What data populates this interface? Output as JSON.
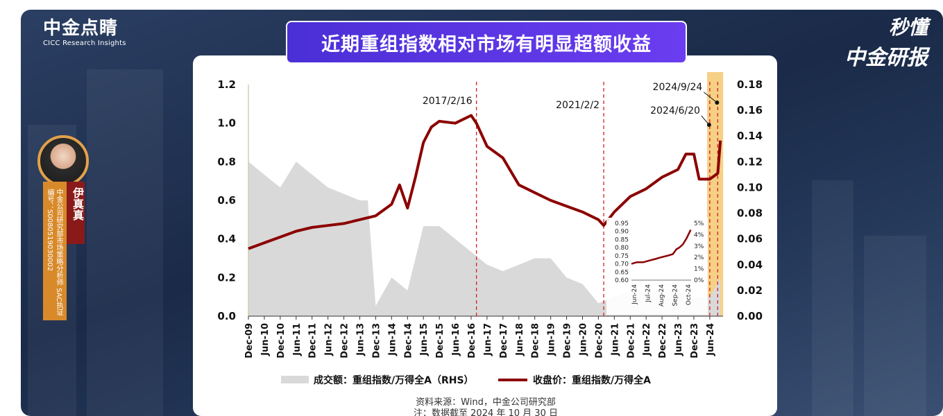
{
  "brand": {
    "logo_name": "中金点睛",
    "logo_sub": "CICC Research Insights",
    "right_line1": "秒懂",
    "right_line2": "中金研报"
  },
  "analyst": {
    "name": "伊真真",
    "title": "中金公司研究部市场策略分析师",
    "license": "SAC执证编号：S0080519030002"
  },
  "colors": {
    "line": "#8B0000",
    "volume": "#d9d9d9",
    "highlight": "#f5c870",
    "event": "#d42020",
    "title_bg": "#5a35e6"
  },
  "chart_data": {
    "type": "line",
    "title": "近期重组指数相对市场有明显超额收益",
    "x_ticks": [
      "Dec-09",
      "Jun-10",
      "Dec-10",
      "Jun-11",
      "Dec-11",
      "Jun-12",
      "Dec-12",
      "Jun-13",
      "Dec-13",
      "Jun-14",
      "Dec-14",
      "Jun-15",
      "Dec-15",
      "Jun-16",
      "Dec-16",
      "Jun-17",
      "Dec-17",
      "Jun-18",
      "Dec-18",
      "Jun-19",
      "Dec-19",
      "Jun-20",
      "Dec-20",
      "Jun-21",
      "Dec-21",
      "Jun-22",
      "Dec-22",
      "Jun-23",
      "Dec-23",
      "Jun-24"
    ],
    "y_left": {
      "range": [
        0,
        1.2
      ],
      "ticks": [
        "0.0",
        "0.2",
        "0.4",
        "0.6",
        "0.8",
        "1.0",
        "1.2"
      ]
    },
    "y_right": {
      "range": [
        0,
        0.18
      ],
      "ticks": [
        "0.00",
        "0.02",
        "0.04",
        "0.06",
        "0.08",
        "0.10",
        "0.12",
        "0.14",
        "0.16",
        "0.18"
      ]
    },
    "series": [
      {
        "name": "收盘价：重组指数/万得全A",
        "axis": "left",
        "x": [
          "2009-12",
          "2010-06",
          "2010-12",
          "2011-06",
          "2011-12",
          "2012-06",
          "2012-12",
          "2013-06",
          "2013-12",
          "2014-06",
          "2014-09",
          "2014-12",
          "2015-03",
          "2015-06",
          "2015-09",
          "2015-12",
          "2016-06",
          "2016-12",
          "2017-02",
          "2017-06",
          "2017-12",
          "2018-06",
          "2018-12",
          "2019-06",
          "2019-12",
          "2020-06",
          "2020-12",
          "2021-02",
          "2021-06",
          "2021-12",
          "2022-06",
          "2022-12",
          "2023-06",
          "2023-09",
          "2023-12",
          "2024-02",
          "2024-06",
          "2024-09",
          "2024-10"
        ],
        "values": [
          0.35,
          0.38,
          0.41,
          0.44,
          0.46,
          0.47,
          0.48,
          0.5,
          0.52,
          0.58,
          0.68,
          0.56,
          0.72,
          0.9,
          0.98,
          1.01,
          1.0,
          1.04,
          1.0,
          0.88,
          0.82,
          0.68,
          0.64,
          0.6,
          0.57,
          0.54,
          0.5,
          0.47,
          0.54,
          0.62,
          0.66,
          0.72,
          0.76,
          0.84,
          0.84,
          0.71,
          0.71,
          0.74,
          0.91
        ]
      },
      {
        "name": "成交额：重组指数/万得全A（RHS）",
        "axis": "right",
        "type": "area",
        "x": [
          "2009-12",
          "2010-06",
          "2010-12",
          "2011-06",
          "2011-12",
          "2012-06",
          "2012-12",
          "2013-06",
          "2013-09",
          "2013-12",
          "2014-06",
          "2014-12",
          "2015-06",
          "2015-12",
          "2016-06",
          "2016-12",
          "2017-06",
          "2017-12",
          "2018-06",
          "2018-12",
          "2019-06",
          "2019-12",
          "2020-06",
          "2020-12",
          "2021-06",
          "2021-12",
          "2022-06",
          "2022-12",
          "2023-06",
          "2023-12",
          "2024-06",
          "2024-10"
        ],
        "values": [
          0.12,
          0.11,
          0.1,
          0.12,
          0.11,
          0.1,
          0.095,
          0.09,
          0.09,
          0.008,
          0.03,
          0.02,
          0.07,
          0.07,
          0.06,
          0.05,
          0.04,
          0.035,
          0.04,
          0.045,
          0.045,
          0.03,
          0.025,
          0.01,
          0.015,
          0.02,
          0.018,
          0.02,
          0.02,
          0.015,
          0.015,
          0.03
        ]
      }
    ],
    "events": [
      {
        "label": "2017/2/16",
        "x": "2017-02"
      },
      {
        "label": "2021/2/2",
        "x": "2021-02"
      },
      {
        "label": "2024/6/20",
        "x": "2024-06"
      },
      {
        "label": "2024/9/24",
        "x": "2024-09"
      }
    ],
    "highlight_range": [
      "2024-05",
      "2024-10"
    ],
    "legend": {
      "area_label": "成交额：重组指数/万得全A（RHS）",
      "line_label": "收盘价：重组指数/万得全A",
      "placement": "bottom"
    },
    "inset": {
      "x_ticks": [
        "Jun-24",
        "Jul-24",
        "Aug-24",
        "Sep-24",
        "Oct-24"
      ],
      "y_left_ticks": [
        "0.60",
        "0.65",
        "0.70",
        "0.75",
        "0.80",
        "0.85",
        "0.90",
        "0.95"
      ],
      "y_right_ticks": [
        "0%",
        "1%",
        "2%",
        "3%",
        "4%",
        "5%"
      ],
      "y_left_range": [
        0.6,
        0.95
      ],
      "x": [
        "2024-06-01",
        "2024-06-15",
        "2024-07-01",
        "2024-07-15",
        "2024-08-01",
        "2024-08-15",
        "2024-09-01",
        "2024-09-15",
        "2024-09-24",
        "2024-10-01",
        "2024-10-10",
        "2024-10-20",
        "2024-10-30"
      ],
      "values": [
        0.7,
        0.71,
        0.71,
        0.72,
        0.73,
        0.74,
        0.75,
        0.76,
        0.79,
        0.8,
        0.82,
        0.86,
        0.91
      ]
    },
    "source": "资料来源：Wind，中金公司研究部",
    "note": "注：数据截至 2024 年 10 月 30 日"
  }
}
